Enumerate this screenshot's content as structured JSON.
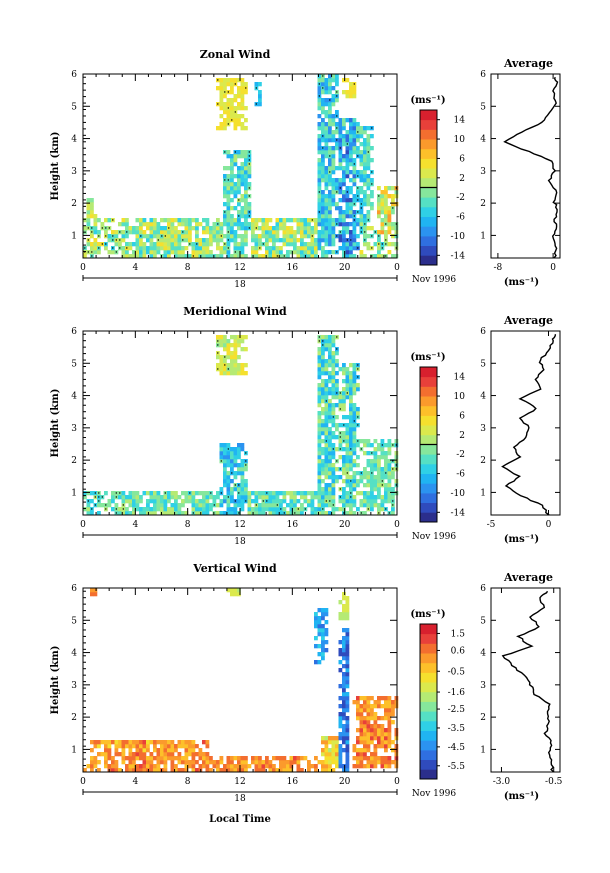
{
  "colors": {
    "scale": [
      "#2b2e8c",
      "#2f4bbd",
      "#2f6fe0",
      "#2b93f0",
      "#20b4f2",
      "#2fd0e6",
      "#55e0c4",
      "#86e79c",
      "#b5ea74",
      "#dbe94d",
      "#f5e02e",
      "#fdc02a",
      "#fb9a2c",
      "#f36e2f",
      "#e8403a",
      "#d8202e"
    ],
    "contour": "#000000"
  },
  "shared": {
    "x_ticks": [
      "0",
      "4",
      "8",
      "12",
      "16",
      "20",
      "0"
    ],
    "day_label": "18",
    "date_label": "Nov 1996",
    "unit_label": "(ms⁻¹)",
    "avg_title": "Average",
    "xlabel": "Local Time"
  },
  "chart_data": [
    {
      "type": "heatmap",
      "id": "zonal",
      "title": "Zonal Wind",
      "ylabel": "Height (km)",
      "x_range": [
        0,
        24
      ],
      "y_range": [
        0.3,
        6.0
      ],
      "y_ticks": [
        1,
        2,
        3,
        4,
        5,
        6
      ],
      "colorbar": {
        "range": [
          -16,
          16
        ],
        "tick_values": [
          14,
          10,
          6,
          2,
          -2,
          -6,
          -10,
          -14
        ],
        "tick_labels": [
          "14",
          "10",
          "6",
          "2",
          "-2",
          "-6",
          "-10",
          "-14"
        ],
        "zero_line": 0
      },
      "regions": [
        {
          "x": [
            0,
            24
          ],
          "y": [
            0.3,
            1.6
          ],
          "v": 0,
          "amp": 5
        },
        {
          "x": [
            0.2,
            1.0
          ],
          "y": [
            1.6,
            2.2
          ],
          "v": 2,
          "amp": 3
        },
        {
          "x": [
            10.2,
            12.5
          ],
          "y": [
            4.3,
            5.9
          ],
          "v": 4,
          "amp": 2
        },
        {
          "x": [
            13.2,
            13.6
          ],
          "y": [
            5.0,
            5.8
          ],
          "v": -6,
          "amp": 2
        },
        {
          "x": [
            10.8,
            12.8
          ],
          "y": [
            0.3,
            3.6
          ],
          "v": -3,
          "amp": 4
        },
        {
          "x": [
            17.8,
            19.5
          ],
          "y": [
            0.3,
            6.0
          ],
          "v": -5,
          "amp": 5
        },
        {
          "x": [
            19.4,
            21.2
          ],
          "y": [
            0.3,
            4.6
          ],
          "v": -7,
          "amp": 6
        },
        {
          "x": [
            21.0,
            22.2
          ],
          "y": [
            1.4,
            4.4
          ],
          "v": -4,
          "amp": 4
        },
        {
          "x": [
            19.8,
            20.8
          ],
          "y": [
            5.3,
            5.9
          ],
          "v": 4,
          "amp": 2
        },
        {
          "x": [
            22.5,
            24.0
          ],
          "y": [
            1.0,
            2.5
          ],
          "v": 4,
          "amp": 6
        }
      ],
      "avg_profile": {
        "heights": [
          0.3,
          0.6,
          0.9,
          1.2,
          1.5,
          1.8,
          2.1,
          2.4,
          2.7,
          3.0,
          3.3,
          3.6,
          3.9,
          4.2,
          4.5,
          4.8,
          5.1,
          5.4,
          5.7,
          5.9
        ],
        "values": [
          0.2,
          0.4,
          -0.1,
          0.5,
          0.3,
          0.6,
          0.1,
          0.4,
          -0.5,
          0.2,
          -0.3,
          -3.5,
          -7.2,
          -4.5,
          -1.5,
          -0.6,
          0.4,
          0.0,
          0.6,
          0.3
        ],
        "x_range": [
          -9,
          1
        ],
        "x_ticks": [
          -8,
          0
        ],
        "x_tick_labels": [
          "-8",
          "0"
        ],
        "xlabel": "(ms⁻¹)"
      }
    },
    {
      "type": "heatmap",
      "id": "meridional",
      "title": "Meridional Wind",
      "ylabel": "Height (km)",
      "x_range": [
        0,
        24
      ],
      "y_range": [
        0.3,
        6.0
      ],
      "y_ticks": [
        1,
        2,
        3,
        4,
        5,
        6
      ],
      "colorbar": {
        "range": [
          -16,
          16
        ],
        "tick_values": [
          14,
          10,
          6,
          2,
          -2,
          -6,
          -10,
          -14
        ],
        "tick_labels": [
          "14",
          "10",
          "6",
          "2",
          "-2",
          "-6",
          "-10",
          "-14"
        ],
        "zero_line": 0
      },
      "regions": [
        {
          "x": [
            0,
            24
          ],
          "y": [
            0.3,
            1.0
          ],
          "v": -2,
          "amp": 4
        },
        {
          "x": [
            10.2,
            12.5
          ],
          "y": [
            4.6,
            5.9
          ],
          "v": 2,
          "amp": 3
        },
        {
          "x": [
            10.3,
            12.6
          ],
          "y": [
            0.3,
            2.5
          ],
          "v": -5,
          "amp": 4
        },
        {
          "x": [
            17.8,
            19.4
          ],
          "y": [
            0.3,
            5.9
          ],
          "v": -3,
          "amp": 5
        },
        {
          "x": [
            19.5,
            21.0
          ],
          "y": [
            0.3,
            5.0
          ],
          "v": -3,
          "amp": 5
        },
        {
          "x": [
            21.0,
            24.0
          ],
          "y": [
            0.5,
            2.6
          ],
          "v": -2,
          "amp": 3
        }
      ],
      "avg_profile": {
        "heights": [
          0.3,
          0.6,
          0.9,
          1.2,
          1.5,
          1.8,
          2.1,
          2.4,
          2.7,
          3.0,
          3.3,
          3.6,
          3.9,
          4.2,
          4.5,
          4.8,
          5.1,
          5.4,
          5.7,
          5.9
        ],
        "values": [
          0.0,
          -0.6,
          -2.4,
          -3.6,
          -2.6,
          -4.1,
          -2.5,
          -3.0,
          -2.0,
          -1.6,
          -2.6,
          -1.0,
          -2.5,
          -0.6,
          -1.2,
          -0.3,
          -0.8,
          0.1,
          0.4,
          0.6
        ],
        "x_range": [
          -5,
          1
        ],
        "x_ticks": [
          -5,
          0
        ],
        "x_tick_labels": [
          "-5",
          "0"
        ],
        "xlabel": "(ms⁻¹)"
      }
    },
    {
      "type": "heatmap",
      "id": "vertical",
      "title": "Vertical Wind",
      "ylabel": "Height (km)",
      "x_range": [
        0,
        24
      ],
      "y_range": [
        0.3,
        6.0
      ],
      "y_ticks": [
        1,
        2,
        3,
        4,
        5,
        6
      ],
      "colorbar": {
        "range": [
          -6.2,
          2.0
        ],
        "tick_values": [
          1.5,
          0.6,
          -0.5,
          -1.6,
          -2.5,
          -3.5,
          -4.5,
          -5.5
        ],
        "tick_labels": [
          "1.5",
          "0.6",
          "-0.5",
          "-1.6",
          "-2.5",
          "-3.5",
          "-4.5",
          "-5.5"
        ],
        "zero_line": null
      },
      "regions": [
        {
          "x": [
            0,
            18.5
          ],
          "y": [
            0.3,
            0.8
          ],
          "v": 0.3,
          "amp": 0.7
        },
        {
          "x": [
            0.5,
            9.5
          ],
          "y": [
            0.6,
            1.3
          ],
          "v": 0.2,
          "amp": 0.8
        },
        {
          "x": [
            0.5,
            1.0
          ],
          "y": [
            5.8,
            6.0
          ],
          "v": 0.5,
          "amp": 0.3
        },
        {
          "x": [
            11.0,
            12.0
          ],
          "y": [
            5.7,
            6.0
          ],
          "v": -1.5,
          "amp": 0.3
        },
        {
          "x": [
            17.7,
            18.6
          ],
          "y": [
            3.6,
            5.4
          ],
          "v": -4.0,
          "amp": 0.8
        },
        {
          "x": [
            19.6,
            20.4
          ],
          "y": [
            0.3,
            4.8
          ],
          "v": -4.8,
          "amp": 0.8
        },
        {
          "x": [
            19.6,
            20.4
          ],
          "y": [
            5.0,
            5.9
          ],
          "v": -1.5,
          "amp": 0.6
        },
        {
          "x": [
            18.2,
            19.4
          ],
          "y": [
            0.3,
            1.4
          ],
          "v": -1.0,
          "amp": 1.2
        },
        {
          "x": [
            20.6,
            24.0
          ],
          "y": [
            0.4,
            2.7
          ],
          "v": 0.4,
          "amp": 0.8
        }
      ],
      "avg_profile": {
        "heights": [
          0.3,
          0.6,
          0.9,
          1.2,
          1.5,
          1.8,
          2.1,
          2.4,
          2.7,
          3.0,
          3.3,
          3.6,
          3.9,
          4.2,
          4.5,
          4.8,
          5.1,
          5.4,
          5.7,
          5.9
        ],
        "values": [
          -0.55,
          -0.6,
          -0.7,
          -0.6,
          -0.9,
          -0.75,
          -0.8,
          -0.75,
          -1.4,
          -1.6,
          -1.9,
          -2.5,
          -2.9,
          -1.6,
          -2.2,
          -1.2,
          -1.6,
          -0.9,
          -1.2,
          -0.8
        ],
        "x_range": [
          -3.5,
          -0.2
        ],
        "x_ticks": [
          -3.0,
          -0.5
        ],
        "x_tick_labels": [
          "-3.0",
          "-0.5"
        ],
        "xlabel": "(ms⁻¹)"
      }
    }
  ]
}
